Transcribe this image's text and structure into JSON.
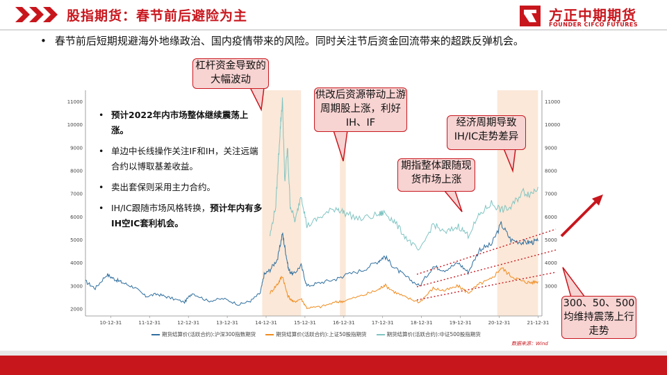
{
  "header": {
    "title": "股指期货：春节前后避险为主",
    "logo_cn": "方正中期期货",
    "logo_en": "FOUNDER CIFCO FUTURES"
  },
  "top_bullet": "春节前后短期规避海外地缘政治、国内疫情带来的风险。同时关注节后资金回流带来的超跌反弹机会。",
  "inner_bullets": [
    {
      "text_bold": "预计2022年内市场整体继续震荡上涨。",
      "text": ""
    },
    {
      "text_bold": "",
      "text": "单边中长线操作关注IF和IH，关注远端合约以博取基差收益。"
    },
    {
      "text_bold": "",
      "text": "卖出套保则采用主力合约。"
    },
    {
      "text": "IH/IC跟随市场风格转换，",
      "text_bold": "预计年内有多IH空IC套利机会。"
    }
  ],
  "callouts": {
    "leverage": "杠杆资金导致的大幅波动",
    "supply_reform": "供改后资源带动上游周期股上涨，利好IH、IF",
    "cycle": "经济周期导致IH/IC走势差异",
    "follow_spot": "期指整体跟随现货市场上涨",
    "range": "300、50、500均维持震荡上行走势"
  },
  "source": "数据来源：Wind",
  "colors": {
    "brand_red": "#c8161d",
    "if_series": "#2e6e9e",
    "ih_series": "#f08c1e",
    "ic_series": "#7fc4c2",
    "highlight_band": "#fbe8d8"
  },
  "chart_data": {
    "type": "line",
    "x_ticks": [
      "10-12-31",
      "11-12-31",
      "12-12-31",
      "13-12-31",
      "14-12-31",
      "15-12-31",
      "16-12-31",
      "17-12-31",
      "18-12-31",
      "19-12-31",
      "20-12-31",
      "21-12-31"
    ],
    "y_ticks_left": [
      "2000",
      "3000",
      "4000",
      "5000",
      "6000",
      "7000",
      "8000",
      "9000",
      "10000",
      "11000"
    ],
    "y_ticks_right": [
      "3000",
      "4000",
      "5000",
      "6000",
      "7000",
      "8000",
      "9000",
      "10000",
      "11000"
    ],
    "ylim": [
      1700,
      11500
    ],
    "xlim": [
      2010.35,
      2022.1
    ],
    "highlight_periods": [
      [
        2014.9,
        2015.9
      ],
      [
        2016.9,
        2017.05
      ],
      [
        2020.95,
        2022.0
      ]
    ],
    "series": [
      {
        "name": "期货结算价(活跃合约):沪深300指数期货",
        "color": "#2e6e9e",
        "points": [
          [
            2010.35,
            3200
          ],
          [
            2010.6,
            2900
          ],
          [
            2010.9,
            3500
          ],
          [
            2011.1,
            3300
          ],
          [
            2011.3,
            3150
          ],
          [
            2011.6,
            2950
          ],
          [
            2011.9,
            2550
          ],
          [
            2012.2,
            2650
          ],
          [
            2012.5,
            2500
          ],
          [
            2012.9,
            2300
          ],
          [
            2013.1,
            2700
          ],
          [
            2013.5,
            2350
          ],
          [
            2013.9,
            2450
          ],
          [
            2014.3,
            2200
          ],
          [
            2014.6,
            2350
          ],
          [
            2014.85,
            2700
          ],
          [
            2014.95,
            3500
          ],
          [
            2015.1,
            3700
          ],
          [
            2015.3,
            4200
          ],
          [
            2015.42,
            5300
          ],
          [
            2015.5,
            4500
          ],
          [
            2015.58,
            3700
          ],
          [
            2015.7,
            3500
          ],
          [
            2015.9,
            3900
          ],
          [
            2016.05,
            3000
          ],
          [
            2016.4,
            3150
          ],
          [
            2016.8,
            3300
          ],
          [
            2017.0,
            3450
          ],
          [
            2017.5,
            3700
          ],
          [
            2017.9,
            4100
          ],
          [
            2018.05,
            4300
          ],
          [
            2018.3,
            3800
          ],
          [
            2018.6,
            3400
          ],
          [
            2018.95,
            3000
          ],
          [
            2019.3,
            3850
          ],
          [
            2019.6,
            3700
          ],
          [
            2019.95,
            4000
          ],
          [
            2020.2,
            3600
          ],
          [
            2020.5,
            4600
          ],
          [
            2020.8,
            4800
          ],
          [
            2021.05,
            5700
          ],
          [
            2021.3,
            5000
          ],
          [
            2021.6,
            4900
          ],
          [
            2021.8,
            4900
          ],
          [
            2022.0,
            4950
          ]
        ]
      },
      {
        "name": "期货结算价(活跃合约):上证50股指期货",
        "color": "#f08c1e",
        "points": [
          [
            2015.1,
            2700
          ],
          [
            2015.3,
            3100
          ],
          [
            2015.42,
            3450
          ],
          [
            2015.55,
            2600
          ],
          [
            2015.7,
            2300
          ],
          [
            2015.9,
            2450
          ],
          [
            2016.05,
            2050
          ],
          [
            2016.4,
            2100
          ],
          [
            2016.8,
            2300
          ],
          [
            2017.0,
            2350
          ],
          [
            2017.5,
            2600
          ],
          [
            2017.9,
            2850
          ],
          [
            2018.05,
            3050
          ],
          [
            2018.3,
            2750
          ],
          [
            2018.6,
            2500
          ],
          [
            2018.95,
            2300
          ],
          [
            2019.3,
            2900
          ],
          [
            2019.6,
            2800
          ],
          [
            2019.95,
            3000
          ],
          [
            2020.2,
            2700
          ],
          [
            2020.5,
            3100
          ],
          [
            2020.8,
            3300
          ],
          [
            2021.05,
            3800
          ],
          [
            2021.3,
            3450
          ],
          [
            2021.6,
            3200
          ],
          [
            2021.8,
            3150
          ],
          [
            2022.0,
            3200
          ]
        ]
      },
      {
        "name": "期货结算价(活跃合约):中证500股指期货",
        "color": "#7fc4c2",
        "points": [
          [
            2015.1,
            5200
          ],
          [
            2015.25,
            6500
          ],
          [
            2015.35,
            9500
          ],
          [
            2015.42,
            11100
          ],
          [
            2015.48,
            7500
          ],
          [
            2015.55,
            9000
          ],
          [
            2015.62,
            6500
          ],
          [
            2015.75,
            5800
          ],
          [
            2015.9,
            7000
          ],
          [
            2016.05,
            5600
          ],
          [
            2016.4,
            6000
          ],
          [
            2016.8,
            6400
          ],
          [
            2017.0,
            6200
          ],
          [
            2017.4,
            5900
          ],
          [
            2017.9,
            6100
          ],
          [
            2018.05,
            6200
          ],
          [
            2018.3,
            5800
          ],
          [
            2018.6,
            5100
          ],
          [
            2018.95,
            4500
          ],
          [
            2019.3,
            5700
          ],
          [
            2019.6,
            5300
          ],
          [
            2019.95,
            5600
          ],
          [
            2020.2,
            5200
          ],
          [
            2020.5,
            6100
          ],
          [
            2020.8,
            6600
          ],
          [
            2021.05,
            6300
          ],
          [
            2021.3,
            6400
          ],
          [
            2021.6,
            7100
          ],
          [
            2021.8,
            7000
          ],
          [
            2022.0,
            7300
          ]
        ]
      }
    ]
  }
}
